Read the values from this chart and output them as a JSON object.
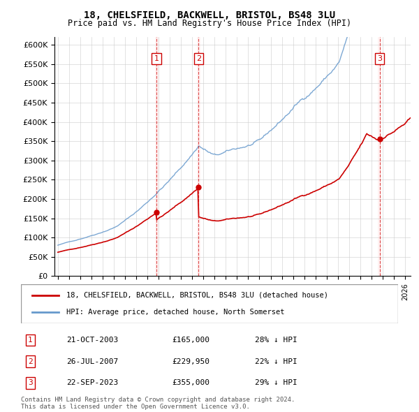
{
  "title": "18, CHELSFIELD, BACKWELL, BRISTOL, BS48 3LU",
  "subtitle": "Price paid vs. HM Land Registry's House Price Index (HPI)",
  "ylabel_ticks": [
    "£0",
    "£50K",
    "£100K",
    "£150K",
    "£200K",
    "£250K",
    "£300K",
    "£350K",
    "£400K",
    "£450K",
    "£500K",
    "£550K",
    "£600K"
  ],
  "ytick_values": [
    0,
    50000,
    100000,
    150000,
    200000,
    250000,
    300000,
    350000,
    400000,
    450000,
    500000,
    550000,
    600000
  ],
  "xlim_start": 1995.0,
  "xlim_end": 2026.5,
  "ylim_min": 0,
  "ylim_max": 620000,
  "sale_dates_num": [
    2003.81,
    2007.57,
    2023.73
  ],
  "sale_prices": [
    165000,
    229950,
    355000
  ],
  "sale_labels": [
    "1",
    "2",
    "3"
  ],
  "vline_color": "#cc0000",
  "vspan_color": "#ffcccc",
  "sale_marker_color": "#cc0000",
  "hpi_line_color": "#6699cc",
  "price_line_color": "#cc0000",
  "legend_entries": [
    "18, CHELSFIELD, BACKWELL, BRISTOL, BS48 3LU (detached house)",
    "HPI: Average price, detached house, North Somerset"
  ],
  "table_rows": [
    [
      "1",
      "21-OCT-2003",
      "£165,000",
      "28% ↓ HPI"
    ],
    [
      "2",
      "26-JUL-2007",
      "£229,950",
      "22% ↓ HPI"
    ],
    [
      "3",
      "22-SEP-2023",
      "£355,000",
      "29% ↓ HPI"
    ]
  ],
  "footnote": "Contains HM Land Registry data © Crown copyright and database right 2024.\nThis data is licensed under the Open Government Licence v3.0.",
  "background_color": "#ffffff",
  "grid_color": "#cccccc"
}
